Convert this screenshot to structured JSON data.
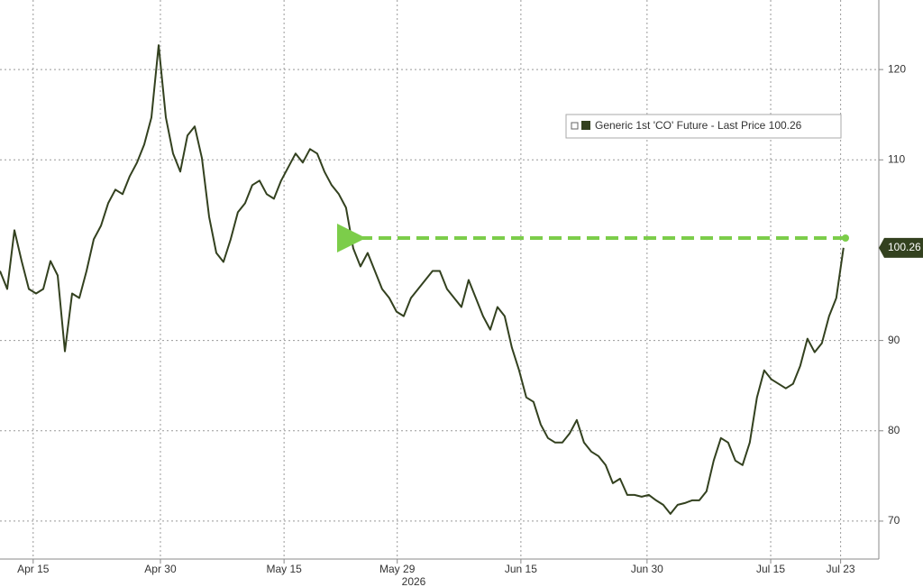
{
  "chart_data": {
    "type": "line",
    "xlabel": "2026",
    "xlim": [
      0,
      121.9
    ],
    "xticks": [
      {
        "value": 4.6,
        "label": "Apr 15"
      },
      {
        "value": 22.25,
        "label": "Apr 30"
      },
      {
        "value": 39.4,
        "label": "May 15"
      },
      {
        "value": 55.1,
        "label": "May 29"
      },
      {
        "value": 72.25,
        "label": "Jun 15"
      },
      {
        "value": 89.75,
        "label": "Jun 30"
      },
      {
        "value": 106.9,
        "label": "Jul 15"
      },
      {
        "value": 116.6,
        "label": "Jul 23"
      }
    ],
    "ylim": [
      65.8,
      127.7
    ],
    "yticks": [
      70,
      80,
      90,
      110,
      120
    ],
    "grid": true,
    "series": [
      {
        "name": "Generic 1st 'CO' Future - Last Price 100.26",
        "color": "#33411f",
        "values": [
          97.7,
          95.7,
          102.2,
          98.8,
          95.7,
          95.2,
          95.7,
          98.8,
          97.2,
          88.8,
          95.2,
          94.7,
          97.7,
          101.2,
          102.7,
          105.2,
          106.7,
          106.2,
          108.2,
          109.7,
          111.7,
          114.7,
          122.7,
          114.7,
          110.7,
          108.7,
          112.7,
          113.7,
          110.2,
          103.7,
          99.7,
          98.7,
          101.2,
          104.2,
          105.2,
          107.2,
          107.7,
          106.2,
          105.7,
          107.7,
          109.2,
          110.7,
          109.7,
          111.2,
          110.7,
          108.7,
          107.2,
          106.2,
          104.7,
          100.2,
          98.2,
          99.7,
          97.7,
          95.7,
          94.7,
          93.2,
          92.7,
          94.7,
          95.7,
          96.7,
          97.7,
          97.7,
          95.7,
          94.7,
          93.7,
          96.7,
          94.7,
          92.7,
          91.2,
          93.7,
          92.7,
          89.2,
          86.7,
          83.7,
          83.2,
          80.7,
          79.2,
          78.7,
          78.7,
          79.7,
          81.2,
          78.7,
          77.7,
          77.2,
          76.2,
          74.2,
          74.7,
          72.9,
          72.9,
          72.7,
          72.9,
          72.3,
          71.8,
          70.8,
          71.8,
          72.0,
          72.3,
          72.3,
          73.3,
          76.7,
          79.2,
          78.7,
          76.7,
          76.2,
          78.7,
          83.7,
          86.7,
          85.7,
          85.2,
          84.7,
          85.2,
          87.2,
          90.2,
          88.7,
          89.7,
          92.7,
          94.7,
          100.26
        ]
      }
    ]
  }
}
